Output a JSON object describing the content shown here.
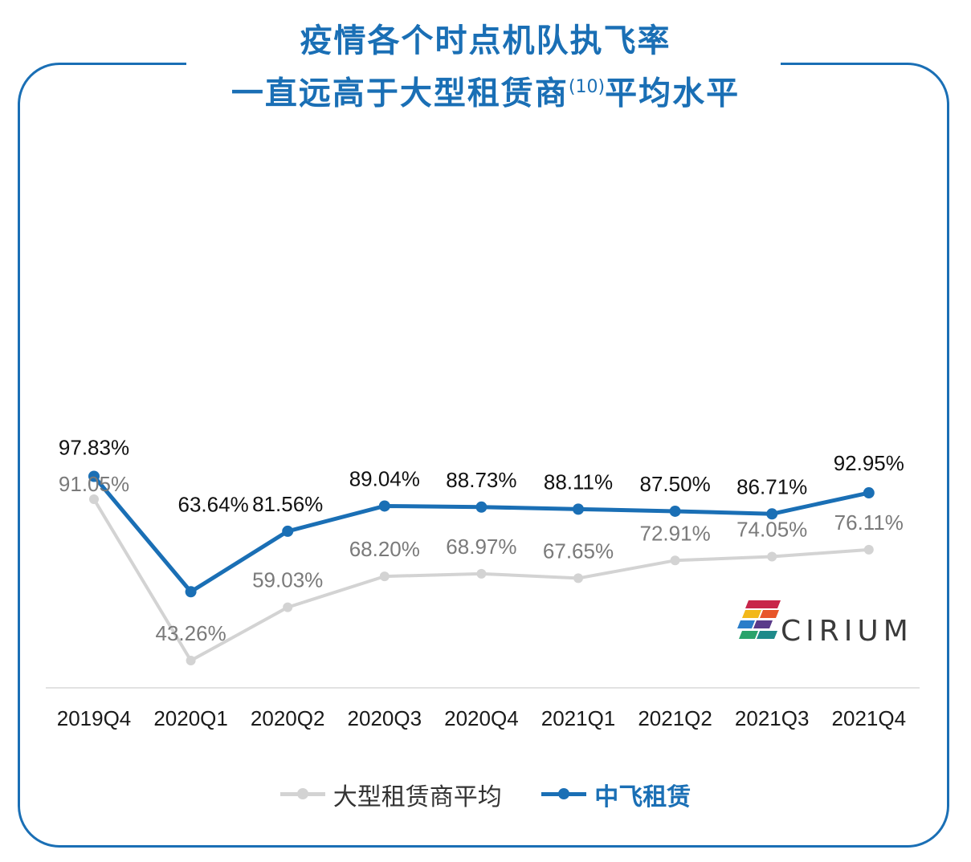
{
  "title": {
    "line1": "疫情各个时点机队执飞率",
    "line2_prefix": "一直远高于大型租赁商",
    "line2_sup": "(10)",
    "line2_suffix": "平均水平"
  },
  "logo": {
    "text": "CIRIUM",
    "icon": "cirium-logo-icon"
  },
  "colors": {
    "frame": "#1a6fb5",
    "series_blue": "#1a6fb5",
    "series_gray": "#d3d3d3",
    "label_gray": "#7a7a7a"
  },
  "chart_data": {
    "type": "line",
    "title": "疫情各个时点机队执飞率 一直远高于大型租赁商(10)平均水平",
    "xlabel": "",
    "ylabel": "",
    "categories": [
      "2019Q4",
      "2020Q1",
      "2020Q2",
      "2020Q3",
      "2020Q4",
      "2021Q1",
      "2021Q2",
      "2021Q3",
      "2021Q4"
    ],
    "series": [
      {
        "name": "大型租赁商平均",
        "values": [
          91.05,
          43.26,
          59.03,
          68.2,
          68.97,
          67.65,
          72.91,
          74.05,
          76.11
        ],
        "labels": [
          "91.05%",
          "43.26%",
          "59.03%",
          "68.20%",
          "68.97%",
          "67.65%",
          "72.91%",
          "74.05%",
          "76.11%"
        ]
      },
      {
        "name": "中飞租赁",
        "values": [
          97.83,
          63.64,
          81.56,
          89.04,
          88.73,
          88.11,
          87.5,
          86.71,
          92.95
        ],
        "labels": [
          "97.83%",
          "63.64%",
          "81.56%",
          "89.04%",
          "88.73%",
          "88.11%",
          "87.50%",
          "86.71%",
          "92.95%"
        ]
      }
    ],
    "grid": false,
    "legend": "bottom"
  }
}
